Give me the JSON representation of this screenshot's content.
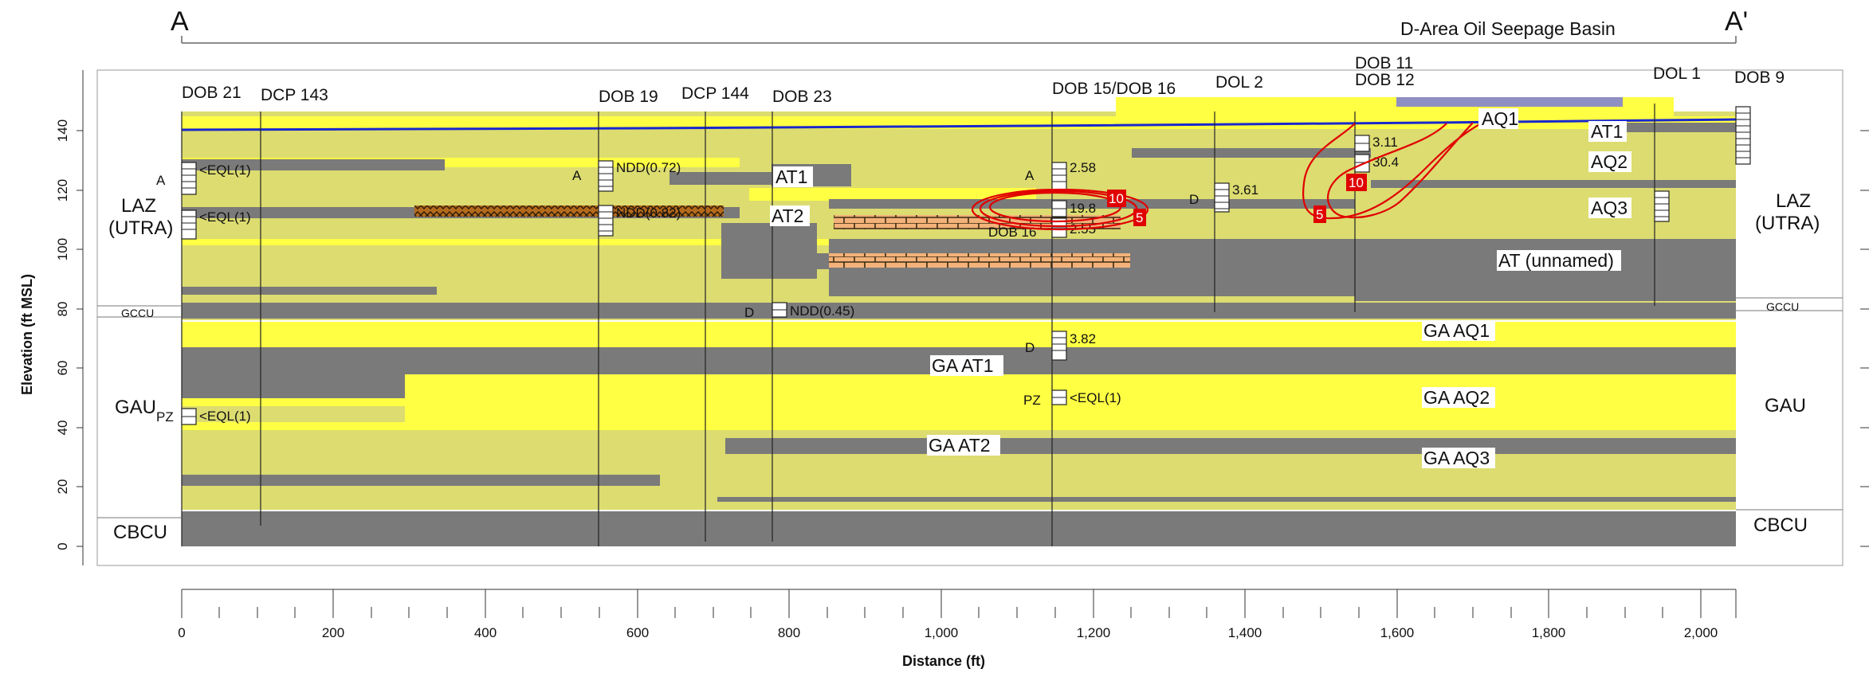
{
  "section": {
    "start_label": "A",
    "end_label": "A'",
    "basin_label": "D-Area Oil Seepage Basin",
    "basin_color": "#8f8fc2"
  },
  "axes": {
    "x_title": "Distance (ft)",
    "y_title": "Elevation (ft MSL)",
    "x_ticks": [
      "0",
      "200",
      "400",
      "600",
      "800",
      "1,000",
      "1,200",
      "1,400",
      "1,600",
      "1,800",
      "2,000"
    ],
    "y_ticks": [
      "0",
      "20",
      "40",
      "60",
      "80",
      "100",
      "120",
      "140"
    ],
    "x_range_ft": [
      0,
      2045
    ],
    "y_range_ft": [
      -8,
      152
    ]
  },
  "wells": [
    {
      "name": "DOB 21",
      "x": 0
    },
    {
      "name": "DCP 143",
      "x": 105
    },
    {
      "name": "DOB 19",
      "x": 550
    },
    {
      "name": "DCP 144",
      "x": 690
    },
    {
      "name": "DOB 23",
      "x": 777
    },
    {
      "name": "DOB 15/DOB 16",
      "x": 1148
    },
    {
      "name": "DOL 2",
      "x": 1362
    },
    {
      "name": "DOB 11",
      "name2": "DOB 12",
      "x": 1545
    },
    {
      "name": "DOL 1",
      "x": 1937
    },
    {
      "name": "DOB 9",
      "x": 2045
    }
  ],
  "units": {
    "laz_left": "LAZ",
    "utra_left": "(UTRA)",
    "gccu_left": "GCCU",
    "gau_left": "GAU",
    "cbcu_left": "CBCU",
    "laz_right": "LAZ",
    "utra_right": "(UTRA)",
    "gccu_right": "GCCU",
    "gau_right": "GAU",
    "cbcu_right": "CBCU"
  },
  "layers": {
    "aq1": "AQ1",
    "at1_right": "AT1",
    "aq2": "AQ2",
    "aq3": "AQ3",
    "at_unnamed": "AT (unnamed)",
    "at1_left": "AT1",
    "at2_left": "AT2",
    "ga_aq1": "GA AQ1",
    "ga_at1": "GA AT1",
    "ga_aq2": "GA AQ2",
    "ga_at2": "GA AT2",
    "ga_aq3": "GA AQ3"
  },
  "screen_values": [
    {
      "id": "dob21a",
      "letter": "A",
      "value": "<EQL(1)"
    },
    {
      "id": "dob21b",
      "letter": "",
      "value": "<EQL(1)"
    },
    {
      "id": "dob21pz",
      "letter": "PZ",
      "value": "<EQL(1)"
    },
    {
      "id": "dob19a",
      "letter": "A",
      "value": "NDD(0.72)"
    },
    {
      "id": "dob19b",
      "letter": "",
      "value": "NDD(0.82)"
    },
    {
      "id": "dob23d",
      "letter": "D",
      "value": "NDD(0.45)"
    },
    {
      "id": "dob15a",
      "letter": "A",
      "value": "2.58"
    },
    {
      "id": "dob15b",
      "letter": "",
      "value": "19.8"
    },
    {
      "id": "dob16",
      "letter": "DOB 16",
      "value": "2.55"
    },
    {
      "id": "dob15d",
      "letter": "D",
      "value": "3.82"
    },
    {
      "id": "dob15pz",
      "letter": "PZ",
      "value": "<EQL(1)"
    },
    {
      "id": "dol2d",
      "letter": "D",
      "value": "3.61"
    },
    {
      "id": "dob11a",
      "letter": "",
      "value": "3.11"
    },
    {
      "id": "dob12a",
      "letter": "",
      "value": "30.4"
    }
  ],
  "contours": [
    "10",
    "5",
    "10",
    "5"
  ],
  "colors": {
    "aquifer": "#ffff44",
    "sand": "#dcdc70",
    "clay": "#7a7a7a",
    "water_table": "#1a28cc",
    "contour": "#e00000",
    "calcareous": "#f3b27a",
    "organic": "#b46a1c"
  }
}
